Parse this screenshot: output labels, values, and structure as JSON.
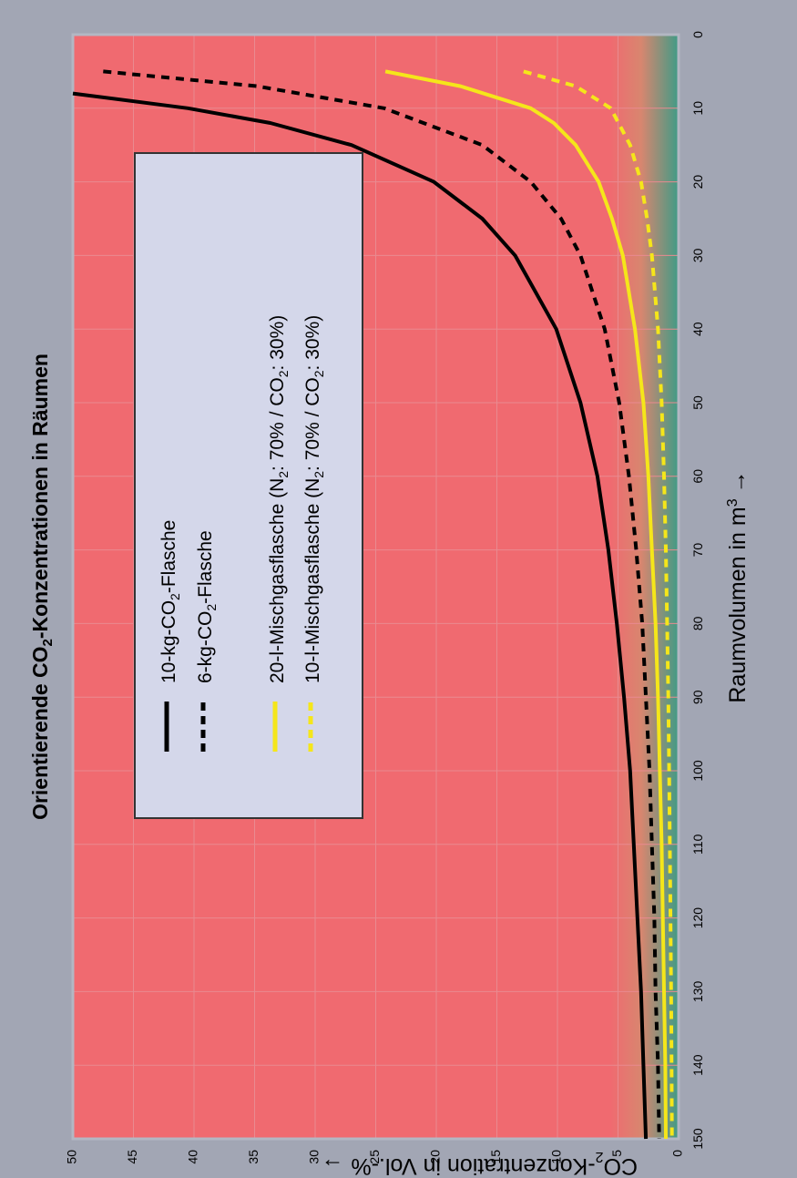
{
  "chart_data": {
    "type": "line",
    "title_parts": [
      "Orientierende CO",
      "2",
      "-Konzentrationen in Räumen"
    ],
    "xlabel_text": "Raumvolumen in m",
    "xlabel_sup": "3",
    "xlabel_arrow": "→",
    "ylabel_parts": [
      "CO",
      "2",
      "-Konzentration in Vol.-%"
    ],
    "ylabel_arrow": "→",
    "xlim": [
      0,
      150
    ],
    "ylim": [
      0,
      50
    ],
    "x_ticks": [
      "0",
      "10",
      "20",
      "30",
      "40",
      "50",
      "60",
      "70",
      "80",
      "90",
      "100",
      "110",
      "120",
      "130",
      "140",
      "150"
    ],
    "y_ticks": [
      "0",
      "5",
      "10",
      "15",
      "20",
      "25",
      "30",
      "35",
      "40",
      "45",
      "50"
    ],
    "grid": true,
    "legend_position": "top-right",
    "background": {
      "danger": "#f06a70",
      "safe": "#3f9b86",
      "plot_border": "#b3b7c3"
    },
    "series": [
      {
        "name_parts": [
          "10-kg-CO",
          "2",
          "-Flasche"
        ],
        "color": "#000000",
        "dash": "solid",
        "x": [
          8,
          10,
          12,
          15,
          20,
          25,
          30,
          40,
          50,
          60,
          70,
          80,
          90,
          100,
          110,
          120,
          130,
          140,
          150
        ],
        "y": [
          50.6,
          40.5,
          33.7,
          27,
          20.2,
          16.2,
          13.5,
          10.1,
          8.1,
          6.7,
          5.8,
          5.1,
          4.5,
          4.0,
          3.7,
          3.4,
          3.1,
          2.9,
          2.7
        ]
      },
      {
        "name_parts": [
          "6-kg-CO",
          "2",
          "-Flasche"
        ],
        "color": "#000000",
        "dash": "dashed",
        "x": [
          5,
          7,
          10,
          15,
          20,
          25,
          30,
          40,
          50,
          60,
          70,
          80,
          90,
          100,
          110,
          120,
          130,
          140,
          150
        ],
        "y": [
          47.5,
          34.8,
          24.3,
          16.2,
          12.2,
          9.7,
          8.1,
          6.1,
          4.9,
          4.1,
          3.5,
          3.0,
          2.7,
          2.4,
          2.2,
          2.0,
          1.9,
          1.7,
          1.6
        ]
      },
      {
        "name_parts": [
          "20-l-Mischgasflasche (N",
          "2",
          ": 70% / CO",
          "2",
          ": 30%)"
        ],
        "color": "#f5e61a",
        "dash": "solid",
        "x": [
          5,
          7,
          10,
          12,
          15,
          20,
          25,
          30,
          40,
          50,
          60,
          70,
          80,
          90,
          100,
          110,
          120,
          130,
          140,
          150
        ],
        "y": [
          24.2,
          18,
          12.2,
          10.3,
          8.5,
          6.6,
          5.5,
          4.6,
          3.6,
          2.9,
          2.5,
          2.2,
          1.9,
          1.7,
          1.55,
          1.4,
          1.3,
          1.2,
          1.1,
          1.05
        ]
      },
      {
        "name_parts": [
          "10-l-Mischgasflasche (N",
          "2",
          ": 70% / CO",
          "2",
          ": 30%)"
        ],
        "color": "#f5e61a",
        "dash": "dashed",
        "x": [
          5,
          7,
          10,
          15,
          20,
          25,
          30,
          40,
          50,
          60,
          70,
          80,
          90,
          100,
          110,
          120,
          130,
          140,
          150
        ],
        "y": [
          12.8,
          8.5,
          5.6,
          4.0,
          3.1,
          2.6,
          2.2,
          1.7,
          1.4,
          1.2,
          1.05,
          0.95,
          0.85,
          0.78,
          0.72,
          0.67,
          0.62,
          0.58,
          0.55
        ]
      }
    ]
  }
}
